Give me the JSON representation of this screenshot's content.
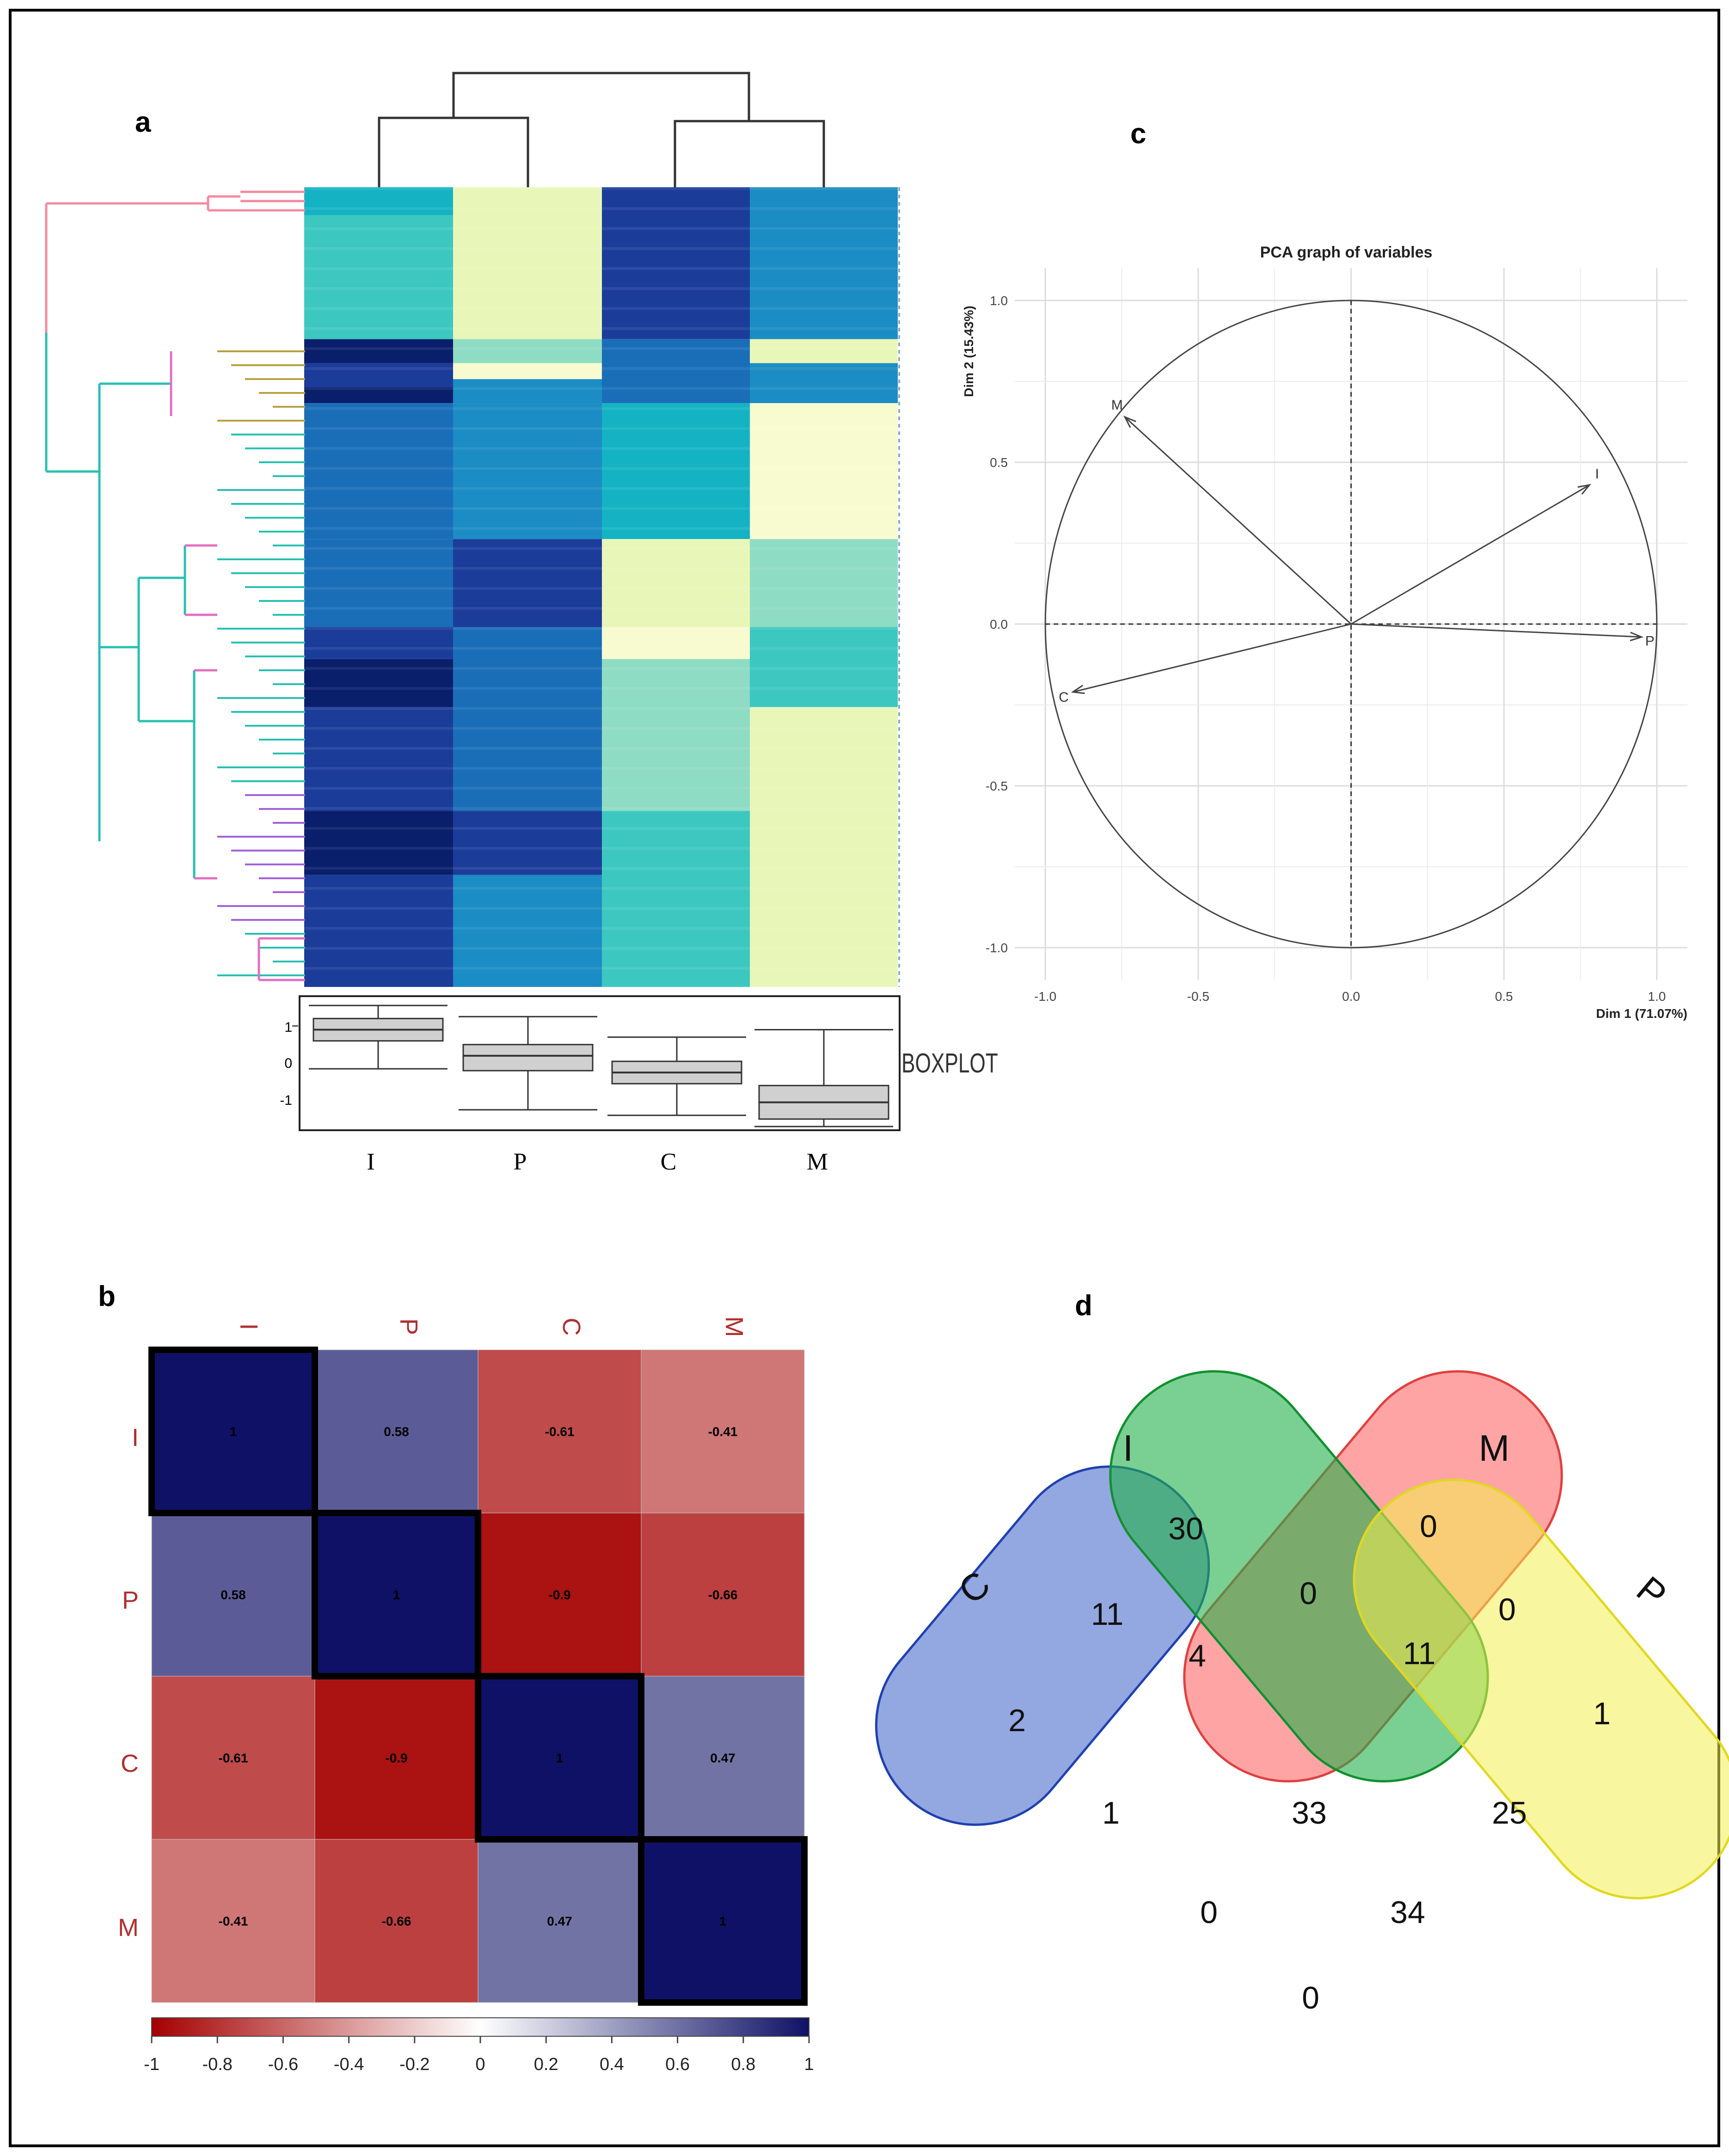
{
  "panels": {
    "a": "a",
    "b": "b",
    "c": "c",
    "d": "d"
  },
  "heatmap": {
    "columns": [
      "I",
      "P",
      "C",
      "M"
    ],
    "boxplot_label": "BOXPLOT",
    "boxplot_ticks": [
      "1",
      "0",
      "-1"
    ],
    "colors": {
      "dark_navy": "#0a1f6b",
      "navy": "#1c3c9a",
      "blue": "#1a6eb8",
      "mid_blue": "#1b8cc4",
      "teal": "#14b3c4",
      "aqua": "#3cc8c0",
      "mint": "#8fdcc4",
      "pale": "#e8f7b8",
      "cream": "#f8fbd0"
    },
    "dendrogram_colors": [
      "#f48aa0",
      "#28c0b0",
      "#b8a040",
      "#a060d8",
      "#e070c0"
    ]
  },
  "chart_data": [
    {
      "type": "boxplot",
      "panel": "a",
      "categories": [
        "I",
        "P",
        "C",
        "M"
      ],
      "ylim": [
        -1.8,
        1.8
      ],
      "ylabel": "",
      "series": [
        {
          "name": "I",
          "min": -0.15,
          "q1": 0.6,
          "median": 0.9,
          "q3": 1.2,
          "max": 1.55
        },
        {
          "name": "P",
          "min": -1.25,
          "q1": -0.2,
          "median": 0.2,
          "q3": 0.5,
          "max": 1.25
        },
        {
          "name": "C",
          "min": -1.4,
          "q1": -0.55,
          "median": -0.25,
          "q3": 0.05,
          "max": 0.7
        },
        {
          "name": "M",
          "min": -1.7,
          "q1": -1.5,
          "median": -1.05,
          "q3": -0.6,
          "max": 0.9
        }
      ]
    },
    {
      "type": "heatmap",
      "panel": "b",
      "title": "",
      "rows": [
        "I",
        "P",
        "C",
        "M"
      ],
      "columns": [
        "I",
        "P",
        "C",
        "M"
      ],
      "values": [
        [
          1,
          0.58,
          -0.61,
          -0.41
        ],
        [
          0.58,
          1,
          -0.9,
          -0.66
        ],
        [
          -0.61,
          -0.9,
          1,
          0.47
        ],
        [
          -0.41,
          -0.66,
          0.47,
          1
        ]
      ],
      "labels": [
        [
          "1",
          "0.58",
          "-0.61",
          "-0.41"
        ],
        [
          "0.58",
          "1",
          "-0.9",
          "-0.66"
        ],
        [
          "-0.61",
          "-0.9",
          "1",
          "0.47"
        ],
        [
          "-0.41",
          "-0.66",
          "0.47",
          "1"
        ]
      ],
      "color_scale": {
        "min": -1,
        "max": 1,
        "low": "#a50000",
        "mid": "#ffffff",
        "high": "#0f1166"
      },
      "colorbar_ticks": [
        "-1",
        "-0.8",
        "-0.6",
        "-0.4",
        "-0.2",
        "0",
        "0.2",
        "0.4",
        "0.6",
        "0.8",
        "1"
      ]
    },
    {
      "type": "scatter",
      "panel": "c",
      "title": "PCA graph of variables",
      "xlabel": "Dim 1 (71.07%)",
      "ylabel": "Dim 2 (15.43%)",
      "xlim": [
        -1.1,
        1.1
      ],
      "ylim": [
        -1.1,
        1.1
      ],
      "x_ticks": [
        "-1.0",
        "-0.5",
        "0.0",
        "0.5",
        "1.0"
      ],
      "y_ticks": [
        "1.0",
        "0.5",
        "0.0",
        "-0.5",
        "-1.0"
      ],
      "grid": true,
      "vectors": [
        {
          "label": "M",
          "x": -0.74,
          "y": 0.64
        },
        {
          "label": "I",
          "x": 0.78,
          "y": 0.43
        },
        {
          "label": "P",
          "x": 0.95,
          "y": -0.04
        },
        {
          "label": "C",
          "x": -0.91,
          "y": -0.21
        }
      ]
    },
    {
      "type": "venn",
      "panel": "d",
      "sets": [
        {
          "name": "C",
          "label": "C",
          "color": "#3b5fc8"
        },
        {
          "name": "I",
          "label": "I",
          "color": "#ff5a5a"
        },
        {
          "name": "M",
          "label": "M",
          "color": "#22b04a"
        },
        {
          "name": "P",
          "label": "P",
          "color": "#f2ee50"
        }
      ],
      "regions": [
        {
          "sets": "I",
          "value": "30"
        },
        {
          "sets": "M",
          "value": "0"
        },
        {
          "sets": "C",
          "value": "2"
        },
        {
          "sets": "P",
          "value": "1"
        },
        {
          "sets": "C,I",
          "value": "11"
        },
        {
          "sets": "I,M",
          "value": "0"
        },
        {
          "sets": "M,P",
          "value": "0"
        },
        {
          "sets": "C,I,M",
          "value": "4"
        },
        {
          "sets": "I,M,P",
          "value": "11"
        },
        {
          "sets": "C,M",
          "value": "1"
        },
        {
          "sets": "I,P",
          "value": "25"
        },
        {
          "sets": "C,I,M,P",
          "value": "33"
        },
        {
          "sets": "C,M,P",
          "value": "0"
        },
        {
          "sets": "C,I,P",
          "value": "34"
        },
        {
          "sets": "C,P",
          "value": "0"
        }
      ]
    }
  ]
}
